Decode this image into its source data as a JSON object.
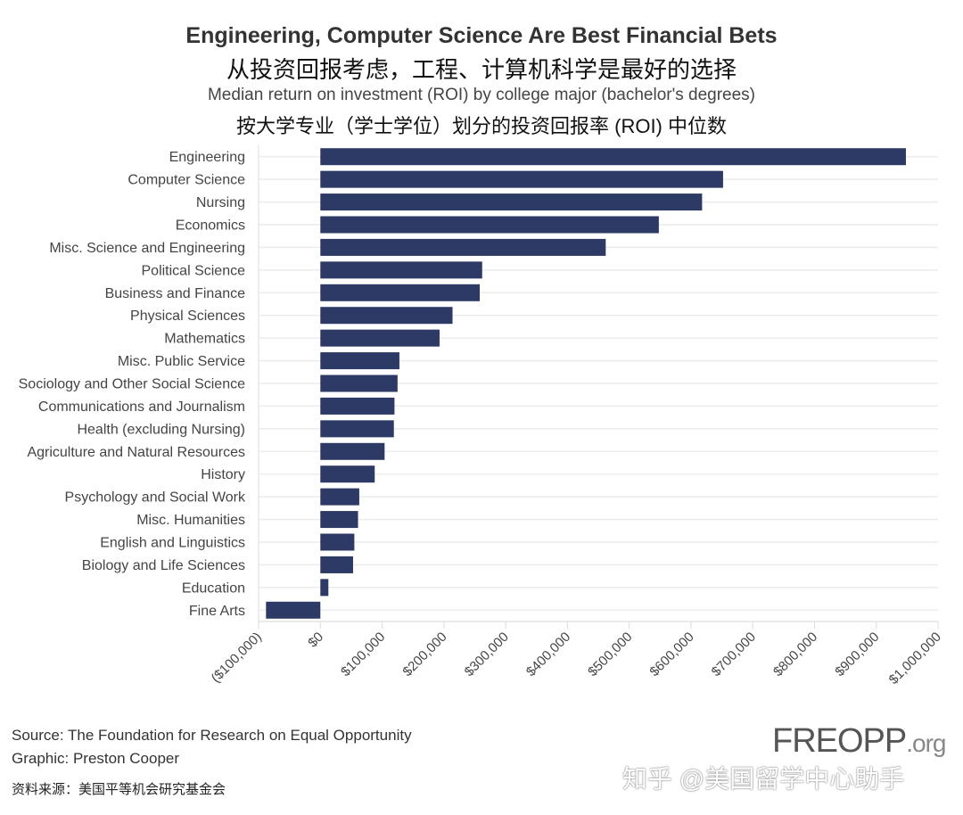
{
  "header": {
    "title": "Engineering, Computer Science Are Best Financial Bets",
    "title_cn": "从投资回报考虑，工程、计算机科学是最好的选择",
    "subtitle": "Median return on investment (ROI) by college major (bachelor's degrees)",
    "subtitle_cn": "按大学专业（学士学位）划分的投资回报率 (ROI) 中位数"
  },
  "chart_data": {
    "type": "bar",
    "orientation": "horizontal",
    "categories": [
      "Engineering",
      "Computer Science",
      "Nursing",
      "Economics",
      "Misc. Science and Engineering",
      "Political Science",
      "Business and Finance",
      "Physical Sciences",
      "Mathematics",
      "Misc. Public Service",
      "Sociology and Other Social Science",
      "Communications and Journalism",
      "Health (excluding Nursing)",
      "Agriculture and Natural Resources",
      "History",
      "Psychology and Social Work",
      "Misc. Humanities",
      "English and Linguistics",
      "Biology and Life Sciences",
      "Education",
      "Fine Arts"
    ],
    "values": [
      948000,
      652000,
      618000,
      548000,
      462000,
      262000,
      258000,
      214000,
      193000,
      128000,
      125000,
      120000,
      119000,
      104000,
      88000,
      63000,
      61000,
      55000,
      53000,
      13000,
      -88000
    ],
    "xlim": [
      -100000,
      1000000
    ],
    "xticks": [
      -100000,
      0,
      100000,
      200000,
      300000,
      400000,
      500000,
      600000,
      700000,
      800000,
      900000,
      1000000
    ],
    "xtick_labels": [
      "($100,000)",
      "$0",
      "$100,000",
      "$200,000",
      "$300,000",
      "$400,000",
      "$500,000",
      "$600,000",
      "$700,000",
      "$800,000",
      "$900,000",
      "$1,000,000"
    ],
    "bar_color": "#2d3a66",
    "grid": true,
    "xlabel": "",
    "ylabel": ""
  },
  "footer": {
    "source": "Source: The Foundation for Research on Equal Opportunity",
    "graphic": "Graphic: Preston Cooper",
    "source_cn": "资料来源：美国平等机会研究基金会",
    "logo_main": "FREOPP",
    "logo_org": ".org",
    "watermark": "知乎 @美国留学中心助手"
  }
}
